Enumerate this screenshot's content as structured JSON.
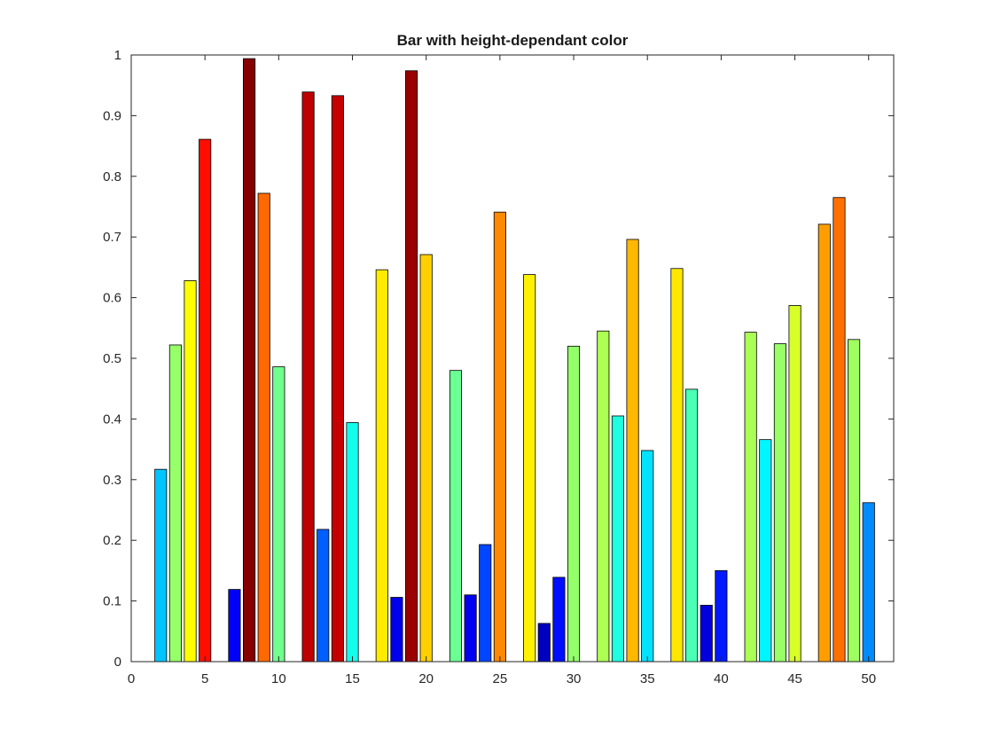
{
  "figure": {
    "background": "#ffffff",
    "axis_color": "#262626",
    "bar_edge_color": "#000000"
  },
  "chart_data": {
    "type": "bar",
    "title": "Bar with height-dependant color",
    "xlabel": "",
    "ylabel": "",
    "xlim": [
      0,
      51.7
    ],
    "ylim": [
      0,
      1
    ],
    "xtick_values": [
      0,
      5,
      10,
      15,
      20,
      25,
      30,
      35,
      40,
      45,
      50
    ],
    "xtick_labels": [
      "0",
      "5",
      "10",
      "15",
      "20",
      "25",
      "30",
      "35",
      "40",
      "45",
      "50"
    ],
    "ytick_values": [
      0,
      0.1,
      0.2,
      0.3,
      0.4,
      0.5,
      0.6,
      0.7,
      0.8,
      0.9,
      1
    ],
    "ytick_labels": [
      "0",
      "0.1",
      "0.2",
      "0.3",
      "0.4",
      "0.5",
      "0.6",
      "0.7",
      "0.8",
      "0.9",
      "1"
    ],
    "grid": false,
    "legend": "none",
    "colormap": "jet",
    "color_rule": "bar color mapped from bar height through jet colormap",
    "bar_width": 0.8,
    "x": [
      2,
      3,
      4,
      5,
      7,
      8,
      9,
      10,
      12,
      13,
      14,
      15,
      17,
      18,
      19,
      20,
      22,
      23,
      24,
      25,
      27,
      28,
      29,
      30,
      32,
      33,
      34,
      35,
      37,
      38,
      39,
      40,
      42,
      43,
      44,
      45,
      47,
      48,
      49,
      50
    ],
    "values": [
      0.317,
      0.522,
      0.628,
      0.861,
      0.119,
      0.994,
      0.772,
      0.486,
      0.939,
      0.218,
      0.933,
      0.394,
      0.646,
      0.106,
      0.974,
      0.671,
      0.48,
      0.11,
      0.193,
      0.741,
      0.638,
      0.063,
      0.139,
      0.52,
      0.545,
      0.405,
      0.696,
      0.348,
      0.648,
      0.449,
      0.093,
      0.15,
      0.543,
      0.366,
      0.524,
      0.587,
      0.721,
      0.765,
      0.531,
      0.262
    ]
  }
}
